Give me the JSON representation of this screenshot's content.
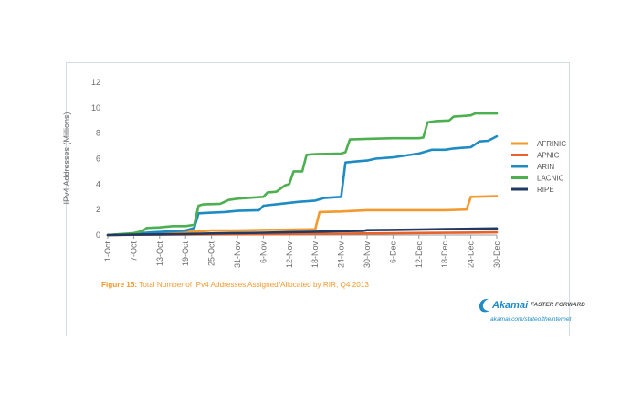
{
  "caption": {
    "label": "Figure 15:",
    "text": "Total Number of IPv4 Addresses Assigned/Allocated by RIR, Q4 2013"
  },
  "brand": {
    "name": "Akamai",
    "tagline": "FASTER FORWARD",
    "url": "akamai.com/stateoftheinternet",
    "logo_color": "#1e8bc3"
  },
  "chart_data": {
    "type": "line",
    "title": "",
    "xlabel": "",
    "ylabel": "IPv4 Addresses (Millions)",
    "ylim": [
      0,
      12
    ],
    "yticks": [
      0,
      2,
      4,
      6,
      8,
      10,
      12
    ],
    "x_range": [
      "1-Oct",
      "31-Dec"
    ],
    "x_tick_labels": [
      "1-Oct",
      "7-Oct",
      "13-Oct",
      "19-Oct",
      "25-Oct",
      "31-Nov",
      "6-Nov",
      "12-Nov",
      "18-Nov",
      "24-Nov",
      "30-Nov",
      "6-Dec",
      "12-Dec",
      "18-Dec",
      "24-Dec",
      "30-Dec"
    ],
    "x_tick_days": [
      0,
      6,
      12,
      18,
      24,
      30,
      36,
      42,
      48,
      54,
      60,
      66,
      72,
      78,
      84,
      90
    ],
    "grid": false,
    "legend_position": "right",
    "series": [
      {
        "name": "AFRINIC",
        "color": "#f29a2e",
        "points": [
          [
            0,
            0
          ],
          [
            6,
            0.05
          ],
          [
            12,
            0.15
          ],
          [
            18,
            0.25
          ],
          [
            22,
            0.3
          ],
          [
            24,
            0.35
          ],
          [
            30,
            0.35
          ],
          [
            36,
            0.4
          ],
          [
            42,
            0.42
          ],
          [
            48,
            0.45
          ],
          [
            49,
            1.8
          ],
          [
            54,
            1.85
          ],
          [
            60,
            1.95
          ],
          [
            66,
            1.95
          ],
          [
            72,
            1.95
          ],
          [
            78,
            1.95
          ],
          [
            83,
            2.0
          ],
          [
            84,
            3.0
          ],
          [
            90,
            3.05
          ]
        ]
      },
      {
        "name": "APNIC",
        "color": "#e8622c",
        "points": [
          [
            0,
            0
          ],
          [
            6,
            0.02
          ],
          [
            18,
            0.04
          ],
          [
            30,
            0.06
          ],
          [
            42,
            0.08
          ],
          [
            54,
            0.11
          ],
          [
            66,
            0.14
          ],
          [
            78,
            0.17
          ],
          [
            90,
            0.21
          ]
        ]
      },
      {
        "name": "ARIN",
        "color": "#1e8bc3",
        "points": [
          [
            0,
            0
          ],
          [
            6,
            0.1
          ],
          [
            10,
            0.2
          ],
          [
            18,
            0.35
          ],
          [
            20,
            0.55
          ],
          [
            21,
            1.7
          ],
          [
            24,
            1.75
          ],
          [
            27,
            1.8
          ],
          [
            30,
            1.9
          ],
          [
            35,
            1.95
          ],
          [
            36,
            2.3
          ],
          [
            40,
            2.45
          ],
          [
            44,
            2.6
          ],
          [
            48,
            2.7
          ],
          [
            50,
            2.9
          ],
          [
            54,
            3.0
          ],
          [
            55,
            5.7
          ],
          [
            58,
            5.8
          ],
          [
            60,
            5.85
          ],
          [
            62,
            6.0
          ],
          [
            66,
            6.1
          ],
          [
            69,
            6.25
          ],
          [
            72,
            6.4
          ],
          [
            75,
            6.7
          ],
          [
            78,
            6.7
          ],
          [
            80,
            6.8
          ],
          [
            84,
            6.9
          ],
          [
            86,
            7.35
          ],
          [
            88,
            7.4
          ],
          [
            90,
            7.75
          ]
        ]
      },
      {
        "name": "LACNIC",
        "color": "#4caf50",
        "points": [
          [
            0,
            0
          ],
          [
            6,
            0.15
          ],
          [
            8,
            0.3
          ],
          [
            9,
            0.55
          ],
          [
            12,
            0.6
          ],
          [
            15,
            0.7
          ],
          [
            18,
            0.7
          ],
          [
            20,
            0.8
          ],
          [
            21,
            2.3
          ],
          [
            22,
            2.4
          ],
          [
            26,
            2.45
          ],
          [
            28,
            2.75
          ],
          [
            30,
            2.85
          ],
          [
            34,
            2.95
          ],
          [
            36,
            3.0
          ],
          [
            37,
            3.35
          ],
          [
            39,
            3.4
          ],
          [
            41,
            3.9
          ],
          [
            42,
            4.0
          ],
          [
            43,
            5.0
          ],
          [
            45,
            5.0
          ],
          [
            46,
            6.3
          ],
          [
            48,
            6.35
          ],
          [
            54,
            6.4
          ],
          [
            55,
            6.5
          ],
          [
            56,
            7.5
          ],
          [
            60,
            7.55
          ],
          [
            66,
            7.6
          ],
          [
            72,
            7.6
          ],
          [
            73,
            7.65
          ],
          [
            74,
            8.85
          ],
          [
            76,
            8.95
          ],
          [
            79,
            9.0
          ],
          [
            80,
            9.3
          ],
          [
            82,
            9.35
          ],
          [
            84,
            9.4
          ],
          [
            85,
            9.55
          ],
          [
            90,
            9.55
          ]
        ]
      },
      {
        "name": "RIPE",
        "color": "#1f3a63",
        "points": [
          [
            0,
            0
          ],
          [
            6,
            0.03
          ],
          [
            12,
            0.05
          ],
          [
            18,
            0.08
          ],
          [
            24,
            0.12
          ],
          [
            30,
            0.15
          ],
          [
            36,
            0.18
          ],
          [
            42,
            0.22
          ],
          [
            48,
            0.26
          ],
          [
            54,
            0.3
          ],
          [
            59,
            0.32
          ],
          [
            60,
            0.38
          ],
          [
            66,
            0.4
          ],
          [
            72,
            0.43
          ],
          [
            78,
            0.46
          ],
          [
            84,
            0.49
          ],
          [
            90,
            0.52
          ]
        ]
      }
    ]
  }
}
